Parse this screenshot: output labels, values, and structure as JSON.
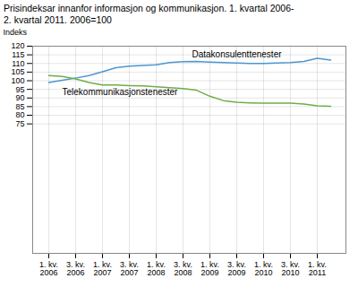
{
  "chart_data": {
    "type": "line",
    "title": "Prisindeksar innanfor informasjon og kommunikasjon. 1. kvartal 2006-\n2. kvartal 2011. 2006=100",
    "y_label": "Indeks",
    "categories": [
      "1. kv.\n2006",
      null,
      "3. kv.\n2006",
      null,
      "1. kv.\n2007",
      null,
      "3. kv.\n2007",
      null,
      "1. kv.\n2008",
      null,
      "3. kv.\n2008",
      null,
      "1. kv.\n2009",
      null,
      "3. kv.\n2009",
      null,
      "1. kv.\n2010",
      null,
      "3. kv.\n2010",
      null,
      "1. kv.\n2011",
      null
    ],
    "series": [
      {
        "name": "Datakonsulenttenester",
        "color": "#4d96d0",
        "values": [
          99.0,
          100.2,
          101.5,
          103.0,
          105.2,
          107.5,
          108.5,
          108.8,
          109.2,
          110.5,
          111.0,
          111.2,
          110.8,
          110.5,
          110.2,
          110.0,
          110.0,
          110.2,
          110.5,
          111.2,
          113.0,
          112.0
        ]
      },
      {
        "name": "Telekommunikasjonstenester",
        "color": "#70ad47",
        "values": [
          103.0,
          102.5,
          101.0,
          99.0,
          97.5,
          97.5,
          97.2,
          97.0,
          96.5,
          96.0,
          95.5,
          94.5,
          91.0,
          88.5,
          87.5,
          87.2,
          87.0,
          87.0,
          87.0,
          86.5,
          85.5,
          85.2
        ]
      }
    ],
    "ylim": [
      0,
      120
    ],
    "yticks": [
      75,
      80,
      85,
      90,
      95,
      100,
      105,
      110,
      115,
      120
    ],
    "grid": true
  }
}
